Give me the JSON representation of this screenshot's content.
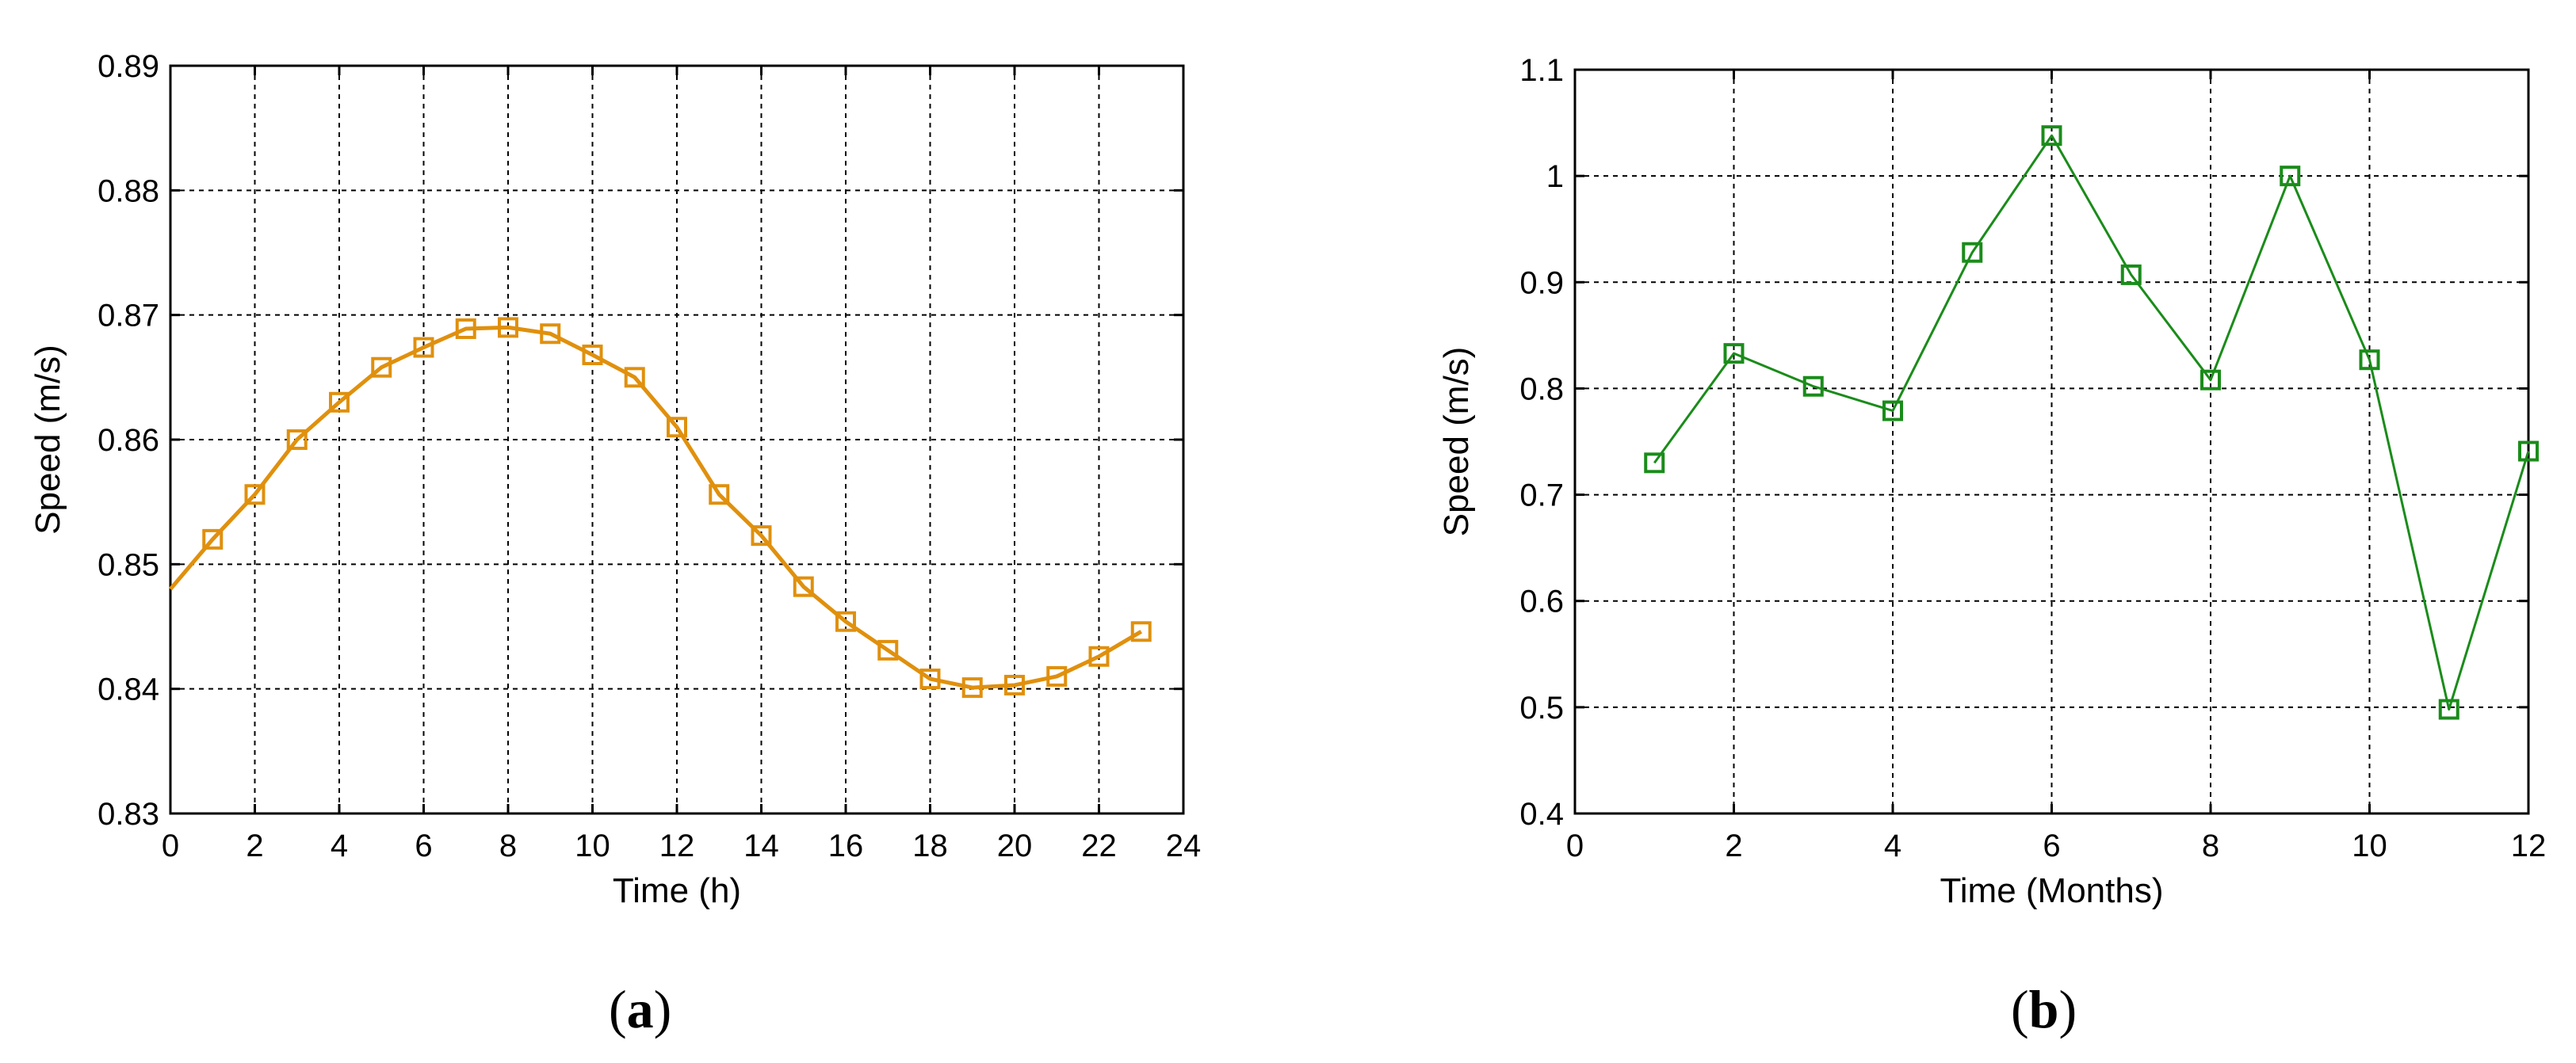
{
  "chart_data": [
    {
      "panel": "(a)",
      "type": "line",
      "xlabel": "Time (h)",
      "ylabel": "Speed (m/s)",
      "xlim": [
        0,
        24
      ],
      "ylim": [
        0.83,
        0.89
      ],
      "xticks": [
        "0",
        "2",
        "4",
        "6",
        "8",
        "10",
        "12",
        "14",
        "16",
        "18",
        "20",
        "22",
        "24"
      ],
      "yticks": [
        "0.83",
        "0.84",
        "0.85",
        "0.86",
        "0.87",
        "0.88",
        "0.89"
      ],
      "grid": true,
      "color": "#E0900D",
      "marker": "square",
      "curve_start": [
        0,
        0.848
      ],
      "series": [
        {
          "x": [
            1,
            2,
            3,
            4,
            5,
            6,
            7,
            8,
            9,
            10,
            11,
            12,
            13,
            14,
            15,
            16,
            17,
            18,
            19,
            20,
            21,
            22,
            23
          ],
          "values": [
            0.852,
            0.8556,
            0.86,
            0.863,
            0.8658,
            0.8674,
            0.8689,
            0.869,
            0.8685,
            0.8668,
            0.865,
            0.861,
            0.8556,
            0.8523,
            0.8482,
            0.8454,
            0.8431,
            0.8408,
            0.8401,
            0.8403,
            0.841,
            0.8426,
            0.8446
          ]
        }
      ]
    },
    {
      "panel": "(b)",
      "type": "line",
      "xlabel": "Time (Months)",
      "ylabel": "Speed (m/s)",
      "xlim": [
        0,
        12
      ],
      "ylim": [
        0.4,
        1.1
      ],
      "xticks": [
        "0",
        "2",
        "4",
        "6",
        "8",
        "10",
        "12"
      ],
      "yticks": [
        "0.4",
        "0.5",
        "0.6",
        "0.7",
        "0.8",
        "0.9",
        "1",
        "1.1"
      ],
      "grid": true,
      "color": "#1A8C1A",
      "marker": "square",
      "series": [
        {
          "x": [
            1,
            2,
            3,
            4,
            5,
            6,
            7,
            8,
            9,
            10,
            11,
            12
          ],
          "values": [
            0.73,
            0.833,
            0.802,
            0.779,
            0.928,
            1.038,
            0.907,
            0.808,
            1.0,
            0.827,
            0.498,
            0.741
          ]
        }
      ]
    }
  ],
  "captions": [
    {
      "open": "(",
      "label": "a",
      "close": ")"
    },
    {
      "open": "(",
      "label": "b",
      "close": ")"
    }
  ]
}
